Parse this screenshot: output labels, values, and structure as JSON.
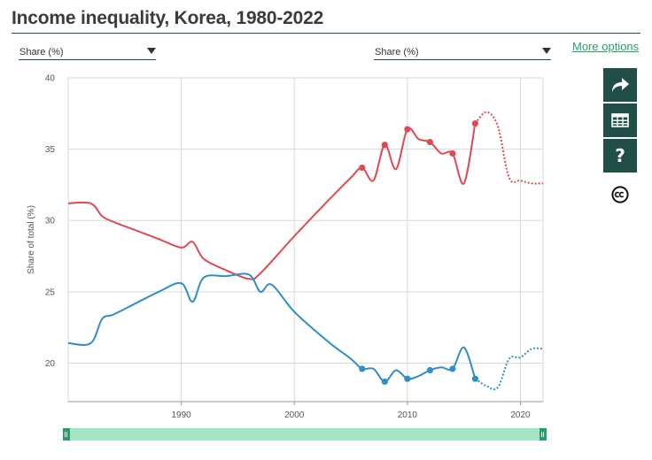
{
  "title": "Income inequality, Korea, 1980-2022",
  "controls": {
    "left_select": "Share (%)",
    "right_select": "Share (%)",
    "more_options": "More options"
  },
  "icons": {
    "share": "share-arrow-icon",
    "table": "table-icon",
    "help": "question-mark-icon",
    "license": "creative-commons-icon"
  },
  "help_glyph": "?",
  "chart_data": {
    "type": "line",
    "title": "Income inequality, Korea, 1980-2022",
    "xlabel": "",
    "ylabel": "Share of total (%)",
    "xlim": [
      1980,
      2022
    ],
    "ylim": [
      17.3,
      40
    ],
    "x_ticks": [
      1990,
      2000,
      2010,
      2020
    ],
    "y_ticks": [
      20,
      25,
      30,
      35,
      40
    ],
    "grid": true,
    "series": [
      {
        "color": "#dd4a55",
        "solid_x": [
          1980,
          1982,
          1983,
          1984,
          1986,
          1988,
          1990,
          1991,
          1992,
          1994,
          1996,
          1997,
          2000,
          2003,
          2005,
          2006,
          2007,
          2008,
          2009,
          2010,
          2011,
          2012,
          2013,
          2014,
          2015,
          2016
        ],
        "solid_y": [
          31.2,
          31.2,
          30.3,
          29.9,
          29.3,
          28.7,
          28.1,
          28.5,
          27.3,
          26.5,
          25.9,
          26.3,
          28.9,
          31.4,
          33.0,
          33.7,
          32.8,
          35.3,
          33.6,
          36.4,
          35.7,
          35.5,
          34.7,
          34.7,
          32.6,
          36.8
        ],
        "dotted_x": [
          2016,
          2017,
          2018,
          2019,
          2020,
          2021,
          2022
        ],
        "dotted_y": [
          36.8,
          37.6,
          36.6,
          33.0,
          32.8,
          32.6,
          32.6
        ],
        "marker_x": [
          2006,
          2008,
          2010,
          2012,
          2014,
          2016
        ],
        "marker_y": [
          33.7,
          35.3,
          36.4,
          35.5,
          34.7,
          36.8
        ]
      },
      {
        "color": "#2f8fc7",
        "solid_x": [
          1980,
          1982,
          1983,
          1984,
          1986,
          1988,
          1990,
          1991,
          1992,
          1994,
          1996,
          1997,
          1998,
          2000,
          2003,
          2005,
          2006,
          2007,
          2008,
          2009,
          2010,
          2011,
          2012,
          2013,
          2014,
          2015,
          2016
        ],
        "solid_y": [
          21.4,
          21.4,
          23.1,
          23.4,
          24.2,
          25.0,
          25.6,
          24.3,
          26.0,
          26.1,
          26.2,
          25.0,
          25.5,
          23.6,
          21.5,
          20.3,
          19.6,
          19.6,
          18.7,
          19.5,
          18.9,
          19.1,
          19.5,
          19.7,
          19.6,
          21.1,
          18.9
        ],
        "dotted_x": [
          2016,
          2017,
          2018,
          2019,
          2020,
          2021,
          2022
        ],
        "dotted_y": [
          18.9,
          18.4,
          18.3,
          20.3,
          20.4,
          21.0,
          21.0
        ],
        "marker_x": [
          2006,
          2008,
          2010,
          2012,
          2014,
          2016
        ],
        "marker_y": [
          19.6,
          18.7,
          18.9,
          19.5,
          19.6,
          18.9
        ]
      }
    ]
  }
}
